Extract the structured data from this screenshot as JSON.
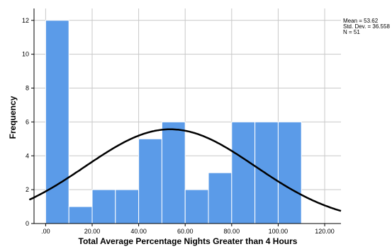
{
  "chart_data": {
    "type": "bar",
    "subtype": "histogram",
    "bins": [
      {
        "start": 0,
        "end": 10,
        "count": 12
      },
      {
        "start": 10,
        "end": 20,
        "count": 1
      },
      {
        "start": 20,
        "end": 30,
        "count": 2
      },
      {
        "start": 30,
        "end": 40,
        "count": 2
      },
      {
        "start": 40,
        "end": 50,
        "count": 5
      },
      {
        "start": 50,
        "end": 60,
        "count": 6
      },
      {
        "start": 60,
        "end": 70,
        "count": 2
      },
      {
        "start": 70,
        "end": 80,
        "count": 3
      },
      {
        "start": 80,
        "end": 90,
        "count": 6
      },
      {
        "start": 90,
        "end": 100,
        "count": 6
      },
      {
        "start": 100,
        "end": 110,
        "count": 6
      }
    ],
    "normal_curve": {
      "mean": 53.62,
      "std": 36.558,
      "n": 51,
      "bin_width": 10
    },
    "xlabel": "Total Average Percentage Nights Greater than 4 Hours",
    "ylabel": "Frequency",
    "xlim": [
      -5,
      127
    ],
    "ylim": [
      0,
      12.7
    ],
    "x_ticks": [
      {
        "value": 0,
        "label": ".00"
      },
      {
        "value": 20,
        "label": "20.00"
      },
      {
        "value": 40,
        "label": "40.00"
      },
      {
        "value": 60,
        "label": "60.00"
      },
      {
        "value": 80,
        "label": "80.00"
      },
      {
        "value": 100,
        "label": "100.00"
      },
      {
        "value": 120,
        "label": "120.00"
      }
    ],
    "y_ticks": [
      0,
      2,
      4,
      6,
      8,
      10,
      12
    ],
    "grid": true,
    "bar_color": "#5b9be8",
    "legend_placement": "top-right"
  },
  "stats": {
    "mean_label": "Mean = 53.62",
    "std_label": "Std. Dev. = 36.558",
    "n_label": "N = 51"
  }
}
